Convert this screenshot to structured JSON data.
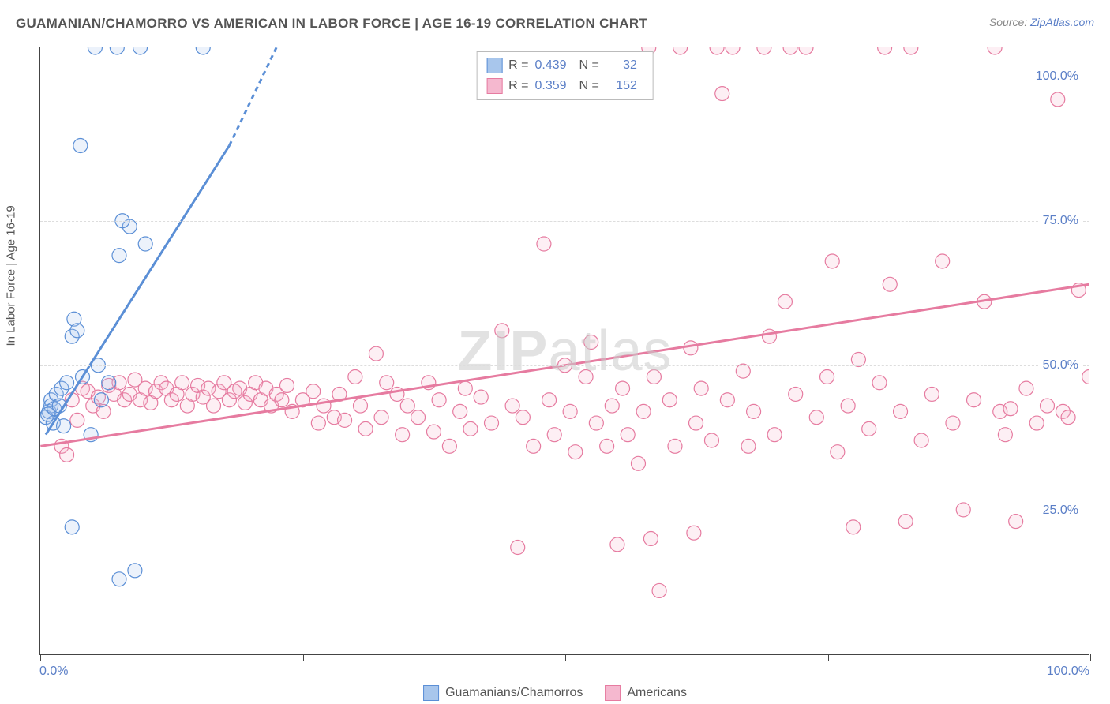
{
  "title": "GUAMANIAN/CHAMORRO VS AMERICAN IN LABOR FORCE | AGE 16-19 CORRELATION CHART",
  "source": {
    "label": "Source: ",
    "link": "ZipAtlas.com"
  },
  "y_axis_title": "In Labor Force | Age 16-19",
  "watermark": {
    "bold": "ZIP",
    "rest": "atlas"
  },
  "chart": {
    "type": "scatter",
    "xlim": [
      0,
      100
    ],
    "ylim": [
      0,
      105
    ],
    "x_ticks": [
      0,
      25,
      50,
      75,
      100
    ],
    "y_ticks": [
      25,
      50,
      75,
      100
    ],
    "x_tick_labels": {
      "0": "0.0%",
      "100": "100.0%"
    },
    "y_tick_labels": [
      "25.0%",
      "50.0%",
      "75.0%",
      "100.0%"
    ],
    "grid_color": "#dddddd",
    "background_color": "#ffffff",
    "axis_color": "#444444",
    "marker_radius": 9,
    "marker_stroke_width": 1.2,
    "marker_fill_opacity": 0.22,
    "trend_line_width": 3
  },
  "series_a": {
    "label": "Guamanians/Chamorros",
    "color_stroke": "#5b8fd6",
    "color_fill": "#a8c6ec",
    "R": "0.439",
    "N": "32",
    "trend": {
      "x1": 0.5,
      "y1": 38,
      "x2": 18,
      "y2": 88,
      "dash_x2": 22.5,
      "dash_y2": 105
    },
    "points": [
      [
        0.5,
        41
      ],
      [
        0.8,
        42
      ],
      [
        1.0,
        44
      ],
      [
        1.2,
        40
      ],
      [
        1.0,
        43
      ],
      [
        1.5,
        45
      ],
      [
        0.7,
        41.5
      ],
      [
        1.3,
        42.5
      ],
      [
        1.8,
        43
      ],
      [
        2.0,
        46
      ],
      [
        2.5,
        47
      ],
      [
        3.0,
        55
      ],
      [
        3.2,
        58
      ],
      [
        4.0,
        48
      ],
      [
        5.5,
        50
      ],
      [
        6.5,
        47
      ],
      [
        2.2,
        39.5
      ],
      [
        3.5,
        56
      ],
      [
        4.8,
        38
      ],
      [
        7.5,
        69
      ],
      [
        8.5,
        74
      ],
      [
        3.8,
        88
      ],
      [
        5.2,
        105
      ],
      [
        7.3,
        105
      ],
      [
        9.5,
        105
      ],
      [
        15.5,
        105
      ],
      [
        7.8,
        75
      ],
      [
        3.0,
        22
      ],
      [
        7.5,
        13
      ],
      [
        9.0,
        14.5
      ],
      [
        10,
        71
      ],
      [
        5.8,
        44
      ]
    ]
  },
  "series_b": {
    "label": "Americans",
    "color_stroke": "#e67ba0",
    "color_fill": "#f5b8cf",
    "R": "0.359",
    "N": "152",
    "trend": {
      "x1": 0,
      "y1": 36,
      "x2": 100,
      "y2": 64
    },
    "points": [
      [
        2,
        36
      ],
      [
        2.5,
        34.5
      ],
      [
        3,
        44
      ],
      [
        3.5,
        40.5
      ],
      [
        4,
        46
      ],
      [
        4.5,
        45.5
      ],
      [
        5,
        43
      ],
      [
        5.5,
        44.5
      ],
      [
        6,
        42
      ],
      [
        6.5,
        46.5
      ],
      [
        7,
        45
      ],
      [
        7.5,
        47
      ],
      [
        8,
        44
      ],
      [
        8.5,
        45
      ],
      [
        9,
        47.5
      ],
      [
        9.5,
        44
      ],
      [
        10,
        46
      ],
      [
        10.5,
        43.5
      ],
      [
        11,
        45.5
      ],
      [
        11.5,
        47
      ],
      [
        12,
        46
      ],
      [
        12.5,
        44
      ],
      [
        13,
        45
      ],
      [
        13.5,
        47
      ],
      [
        14,
        43
      ],
      [
        14.5,
        45
      ],
      [
        15,
        46.5
      ],
      [
        15.5,
        44.5
      ],
      [
        16,
        46
      ],
      [
        16.5,
        43
      ],
      [
        17,
        45.5
      ],
      [
        17.5,
        47
      ],
      [
        18,
        44
      ],
      [
        18.5,
        45.5
      ],
      [
        19,
        46
      ],
      [
        19.5,
        43.5
      ],
      [
        20,
        45
      ],
      [
        20.5,
        47
      ],
      [
        21,
        44
      ],
      [
        21.5,
        46
      ],
      [
        22,
        43
      ],
      [
        22.5,
        45
      ],
      [
        23,
        44
      ],
      [
        23.5,
        46.5
      ],
      [
        24,
        42
      ],
      [
        25,
        44
      ],
      [
        26,
        45.5
      ],
      [
        26.5,
        40
      ],
      [
        27,
        43
      ],
      [
        28,
        41
      ],
      [
        28.5,
        45
      ],
      [
        29,
        40.5
      ],
      [
        30,
        48
      ],
      [
        30.5,
        43
      ],
      [
        31,
        39
      ],
      [
        32,
        52
      ],
      [
        32.5,
        41
      ],
      [
        33,
        47
      ],
      [
        34,
        45
      ],
      [
        34.5,
        38
      ],
      [
        35,
        43
      ],
      [
        36,
        41
      ],
      [
        37,
        47
      ],
      [
        37.5,
        38.5
      ],
      [
        38,
        44
      ],
      [
        39,
        36
      ],
      [
        40,
        42
      ],
      [
        40.5,
        46
      ],
      [
        41,
        39
      ],
      [
        42,
        44.5
      ],
      [
        43,
        40
      ],
      [
        44,
        56
      ],
      [
        45,
        43
      ],
      [
        45.5,
        18.5
      ],
      [
        46,
        41
      ],
      [
        47,
        36
      ],
      [
        48,
        71
      ],
      [
        48.5,
        44
      ],
      [
        49,
        38
      ],
      [
        50,
        50
      ],
      [
        50.5,
        42
      ],
      [
        51,
        35
      ],
      [
        52,
        48
      ],
      [
        52.5,
        54
      ],
      [
        53,
        40
      ],
      [
        54,
        36
      ],
      [
        54.5,
        43
      ],
      [
        55,
        19
      ],
      [
        55.5,
        46
      ],
      [
        56,
        38
      ],
      [
        57,
        33
      ],
      [
        57.5,
        42
      ],
      [
        58,
        105
      ],
      [
        58.5,
        48
      ],
      [
        59,
        11
      ],
      [
        60,
        44
      ],
      [
        60.5,
        36
      ],
      [
        61,
        105
      ],
      [
        62,
        53
      ],
      [
        62.5,
        40
      ],
      [
        63,
        46
      ],
      [
        64,
        37
      ],
      [
        64.5,
        105
      ],
      [
        65,
        97
      ],
      [
        65.5,
        44
      ],
      [
        66,
        105
      ],
      [
        67,
        49
      ],
      [
        67.5,
        36
      ],
      [
        68,
        42
      ],
      [
        69,
        105
      ],
      [
        69.5,
        55
      ],
      [
        70,
        38
      ],
      [
        71,
        61
      ],
      [
        71.5,
        105
      ],
      [
        72,
        45
      ],
      [
        73,
        105
      ],
      [
        74,
        41
      ],
      [
        75,
        48
      ],
      [
        75.5,
        68
      ],
      [
        76,
        35
      ],
      [
        77,
        43
      ],
      [
        77.5,
        22
      ],
      [
        78,
        51
      ],
      [
        79,
        39
      ],
      [
        80,
        47
      ],
      [
        80.5,
        105
      ],
      [
        81,
        64
      ],
      [
        82,
        42
      ],
      [
        82.5,
        23
      ],
      [
        83,
        105
      ],
      [
        84,
        37
      ],
      [
        85,
        45
      ],
      [
        86,
        68
      ],
      [
        87,
        40
      ],
      [
        88,
        25
      ],
      [
        89,
        44
      ],
      [
        90,
        61
      ],
      [
        91,
        105
      ],
      [
        91.5,
        42
      ],
      [
        92,
        38
      ],
      [
        92.5,
        42.5
      ],
      [
        93,
        23
      ],
      [
        94,
        46
      ],
      [
        95,
        40
      ],
      [
        96,
        43
      ],
      [
        97,
        96
      ],
      [
        97.5,
        42
      ],
      [
        98,
        41
      ],
      [
        99,
        63
      ],
      [
        100,
        48
      ],
      [
        58.2,
        20
      ],
      [
        62.3,
        21
      ]
    ]
  },
  "stats_legend": {
    "R_label": "R =",
    "N_label": "N ="
  }
}
